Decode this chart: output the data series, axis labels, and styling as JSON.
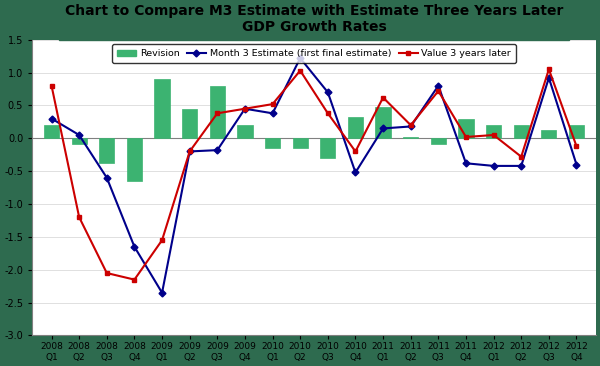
{
  "title": "Chart to Compare M3 Estimate with Estimate Three Years Later\nGDP Growth Rates",
  "categories": [
    "2008\nQ1",
    "2008\nQ2",
    "2008\nQ3",
    "2008\nQ4",
    "2009\nQ1",
    "2009\nQ2",
    "2009\nQ3",
    "2009\nQ4",
    "2010\nQ1",
    "2010\nQ2",
    "2010\nQ3",
    "2010\nQ4",
    "2011\nQ1",
    "2011\nQ2",
    "2011\nQ3",
    "2011\nQ4",
    "2012\nQ1",
    "2012\nQ2",
    "2012\nQ3",
    "2012\nQ4"
  ],
  "month3_estimate": [
    0.3,
    0.05,
    -0.6,
    -1.65,
    -2.35,
    -0.2,
    -0.18,
    0.45,
    0.38,
    1.22,
    0.7,
    -0.52,
    0.15,
    0.18,
    0.8,
    -0.38,
    -0.42,
    -0.42,
    0.92,
    -0.4
  ],
  "value_3years_later": [
    0.8,
    -1.2,
    -2.05,
    -2.15,
    -1.55,
    -0.2,
    0.38,
    0.45,
    0.52,
    1.03,
    0.38,
    -0.2,
    0.62,
    0.2,
    0.72,
    0.02,
    0.05,
    -0.28,
    1.05,
    -0.12
  ],
  "revision": [
    0.2,
    -0.08,
    -0.38,
    -0.65,
    0.9,
    0.45,
    0.8,
    0.2,
    -0.15,
    -0.15,
    -0.3,
    0.32,
    0.48,
    0.02,
    -0.08,
    0.3,
    0.2,
    0.2,
    0.13,
    0.2
  ],
  "bar_color": "#3CB371",
  "line1_color": "#00008B",
  "line2_color": "#CC0000",
  "ylim": [
    -3.0,
    1.5
  ],
  "yticks": [
    -3.0,
    -2.5,
    -2.0,
    -1.5,
    -1.0,
    -0.5,
    0.0,
    0.5,
    1.0,
    1.5
  ],
  "plot_bg": "#FFFFFF",
  "fig_bg": "#2E6B4F",
  "title_color": "#000000",
  "legend_items": [
    "Revision",
    "Month 3 Estimate (first final estimate)",
    "Value 3 years later"
  ]
}
